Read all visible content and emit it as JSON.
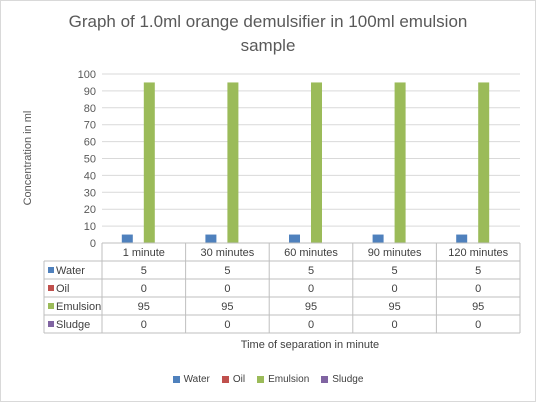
{
  "chart_data": {
    "type": "bar",
    "title": "Graph of 1.0ml orange demulsifier in 100ml emulsion sample",
    "xlabel": "Time of separation in minute",
    "ylabel": "Concentration in ml",
    "ylim": [
      0,
      100
    ],
    "yticks": [
      0,
      10,
      20,
      30,
      40,
      50,
      60,
      70,
      80,
      90,
      100
    ],
    "grid": true,
    "legend_position": "bottom",
    "categories": [
      "1 minute",
      "30 minutes",
      "60 minutes",
      "90 minutes",
      "120 minutes"
    ],
    "series": [
      {
        "name": "Water",
        "color": "#4f81bd",
        "values": [
          5,
          5,
          5,
          5,
          5
        ]
      },
      {
        "name": "Oil",
        "color": "#c0504d",
        "values": [
          0,
          0,
          0,
          0,
          0
        ]
      },
      {
        "name": "Emulsion",
        "color": "#9bbb59",
        "values": [
          95,
          95,
          95,
          95,
          95
        ]
      },
      {
        "name": "Sludge",
        "color": "#8064a2",
        "values": [
          0,
          0,
          0,
          0,
          0
        ]
      }
    ],
    "data_table": true
  }
}
